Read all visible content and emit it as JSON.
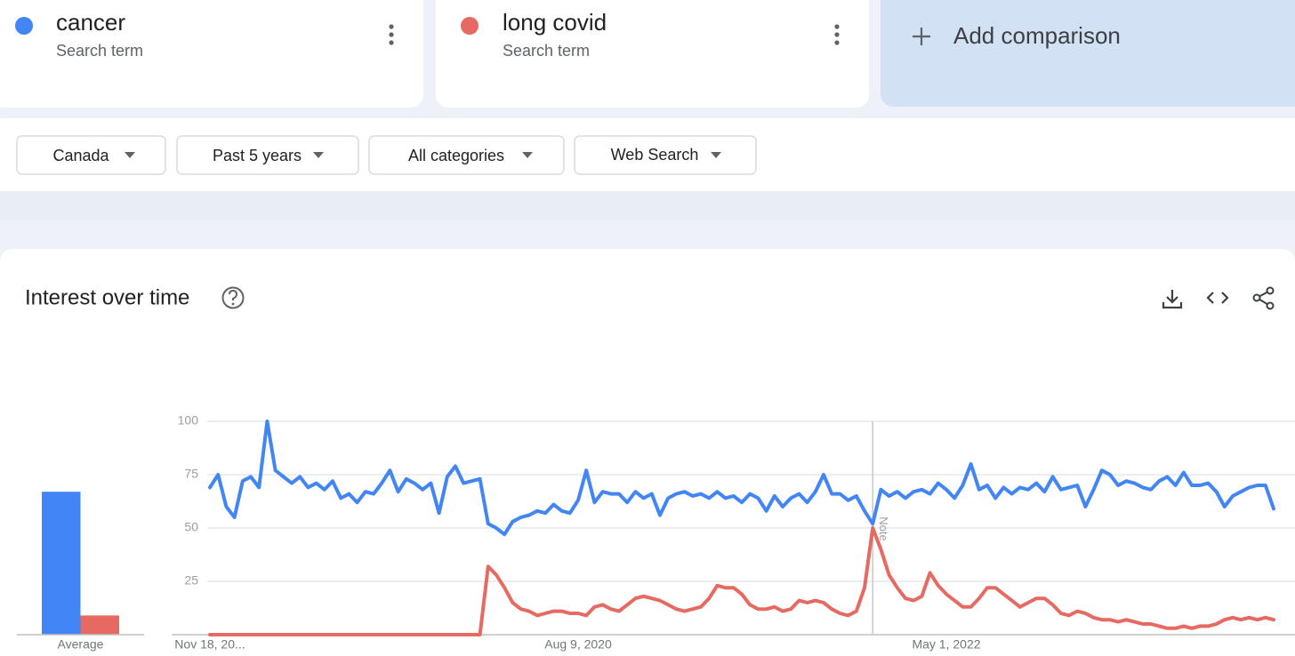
{
  "terms": [
    {
      "subtitle": "Search term"
    },
    {
      "subtitle": "Search term"
    }
  ],
  "add_comparison": "Add comparison",
  "filters": [
    "Canada",
    "Past 5 years",
    "All categories",
    "Web Search"
  ],
  "section_title": "Interest over time",
  "chart_data": [
    {
      "type": "bar",
      "categories": [
        "Average"
      ],
      "ylim": [
        0,
        100
      ],
      "series": [
        {
          "color": "#4285f4",
          "values": [
            67
          ]
        },
        {
          "color": "#e66a62",
          "values": [
            9
          ]
        }
      ]
    },
    {
      "type": "line",
      "categories": [
        "Nov 18, 20...",
        null,
        null,
        null,
        null,
        null,
        null,
        null,
        null,
        null,
        null,
        null,
        null,
        null,
        null,
        null,
        null,
        null,
        null,
        null,
        null,
        null,
        null,
        null,
        null,
        null,
        null,
        null,
        null,
        null,
        null,
        null,
        null,
        null,
        null,
        null,
        null,
        null,
        null,
        null,
        null,
        null,
        null,
        null,
        null,
        "Aug 9, 2020",
        null,
        null,
        null,
        null,
        null,
        null,
        null,
        null,
        null,
        null,
        null,
        null,
        null,
        null,
        null,
        null,
        null,
        null,
        null,
        null,
        null,
        null,
        null,
        null,
        null,
        null,
        null,
        null,
        null,
        null,
        null,
        null,
        null,
        null,
        null,
        null,
        null,
        null,
        null,
        null,
        null,
        null,
        null,
        null,
        "May 1, 2022",
        null,
        null,
        null,
        null,
        null,
        null,
        null,
        null,
        null,
        null,
        null,
        null,
        null,
        null,
        null,
        null,
        null,
        null,
        null,
        null,
        null,
        null,
        null,
        null,
        null,
        null,
        null,
        null,
        null,
        null,
        null,
        null,
        null,
        null,
        null,
        null,
        null,
        null,
        null,
        null
      ],
      "ylim": [
        0,
        100
      ],
      "yticks": [
        25,
        50,
        75,
        100
      ],
      "grid": true,
      "annotations": [
        {
          "category_index": 81,
          "label": "Note"
        }
      ],
      "series": [
        {
          "name": "cancer",
          "color": "#4285f4",
          "values": [
            69,
            75,
            60,
            55,
            72,
            74,
            69,
            100,
            77,
            74,
            71,
            74,
            69,
            71,
            68,
            72,
            64,
            66,
            62,
            67,
            66,
            71,
            77,
            67,
            73,
            71,
            68,
            71,
            57,
            74,
            79,
            71,
            72,
            73,
            52,
            50,
            47,
            53,
            55,
            56,
            58,
            57,
            61,
            58,
            57,
            63,
            77,
            62,
            67,
            66,
            66,
            62,
            67,
            64,
            66,
            56,
            64,
            66,
            67,
            65,
            66,
            64,
            67,
            64,
            65,
            62,
            66,
            64,
            58,
            65,
            60,
            64,
            66,
            62,
            67,
            75,
            66,
            66,
            63,
            65,
            58,
            52,
            68,
            65,
            67,
            64,
            67,
            68,
            66,
            71,
            68,
            64,
            70,
            80,
            68,
            70,
            64,
            69,
            66,
            69,
            68,
            71,
            67,
            74,
            68,
            69,
            70,
            60,
            68,
            77,
            75,
            70,
            72,
            71,
            69,
            68,
            72,
            74,
            70,
            76,
            70,
            70,
            71,
            67,
            60,
            65,
            67,
            69,
            70,
            70,
            59
          ]
        },
        {
          "name": "long covid",
          "color": "#e66a62",
          "values": [
            0,
            0,
            0,
            0,
            0,
            0,
            0,
            0,
            0,
            0,
            0,
            0,
            0,
            0,
            0,
            0,
            0,
            0,
            0,
            0,
            0,
            0,
            0,
            0,
            0,
            0,
            0,
            0,
            0,
            0,
            0,
            0,
            0,
            0,
            32,
            28,
            22,
            15,
            12,
            11,
            9,
            10,
            11,
            11,
            10,
            10,
            9,
            13,
            14,
            12,
            11,
            14,
            17,
            18,
            17,
            16,
            14,
            12,
            11,
            12,
            13,
            17,
            23,
            22,
            22,
            19,
            14,
            12,
            12,
            13,
            11,
            12,
            16,
            15,
            16,
            15,
            12,
            10,
            9,
            11,
            22,
            50,
            40,
            28,
            22,
            17,
            16,
            18,
            29,
            23,
            19,
            16,
            13,
            13,
            17,
            22,
            22,
            19,
            16,
            13,
            15,
            17,
            17,
            14,
            10,
            9,
            11,
            10,
            8,
            7,
            7,
            6,
            7,
            6,
            5,
            5,
            4,
            3,
            3,
            4,
            3,
            4,
            4,
            5,
            7,
            8,
            7,
            8,
            7,
            8,
            7
          ]
        }
      ]
    }
  ]
}
